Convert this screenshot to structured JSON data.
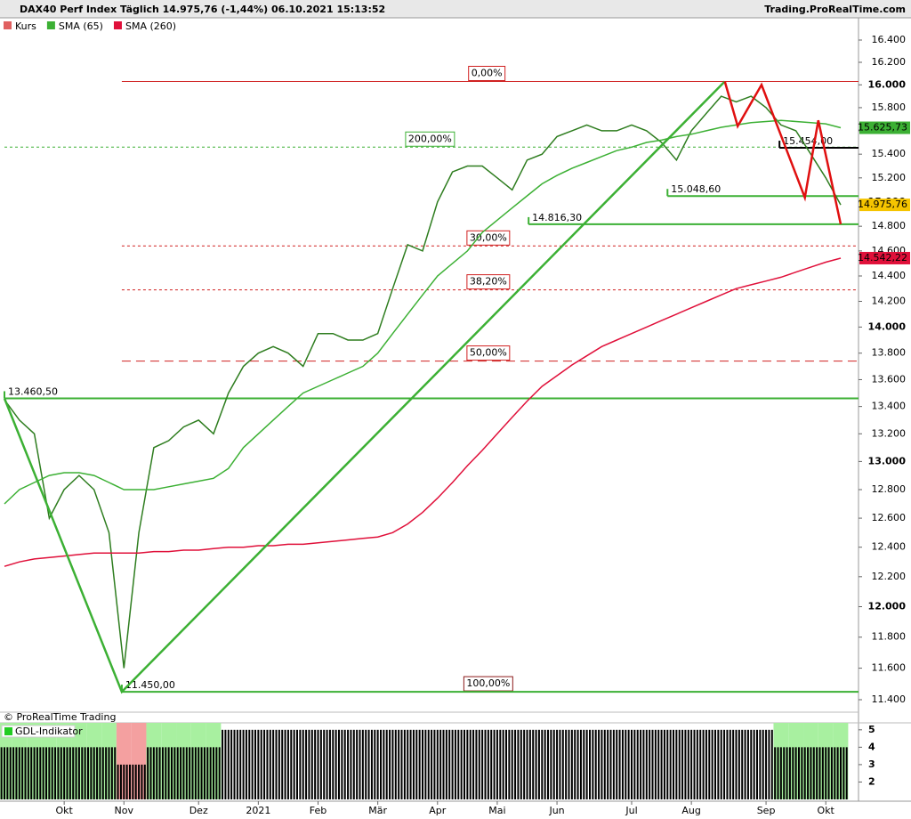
{
  "chart_data": {
    "type": "line",
    "title": "DAX40 Perf Index Täglich 14.975,76 (-1,44%) 06.10.2021 15:13:52",
    "source": "Trading.ProRealTime.com",
    "copyright": "© ProRealTime Trading",
    "log_scale": true,
    "ylim": [
      11322,
      16725
    ],
    "yticks": [
      {
        "value": 11400,
        "label": "11.400"
      },
      {
        "value": 11600,
        "label": "11.600"
      },
      {
        "value": 11800,
        "label": "11.800"
      },
      {
        "value": 12000,
        "label": "12.000"
      },
      {
        "value": 12200,
        "label": "12.200"
      },
      {
        "value": 12400,
        "label": "12.400"
      },
      {
        "value": 12600,
        "label": "12.600"
      },
      {
        "value": 12800,
        "label": "12.800"
      },
      {
        "value": 13000,
        "label": "13.000"
      },
      {
        "value": 13200,
        "label": "13.200"
      },
      {
        "value": 13400,
        "label": "13.400"
      },
      {
        "value": 13600,
        "label": "13.600"
      },
      {
        "value": 13800,
        "label": "13.800"
      },
      {
        "value": 14000,
        "label": "14.000"
      },
      {
        "value": 14200,
        "label": "14.200"
      },
      {
        "value": 14400,
        "label": "14.400"
      },
      {
        "value": 14600,
        "label": "14.600"
      },
      {
        "value": 14800,
        "label": "14.800"
      },
      {
        "value": 15000,
        "label": "15.000"
      },
      {
        "value": 15200,
        "label": "15.200"
      },
      {
        "value": 15400,
        "label": "15.400"
      },
      {
        "value": 15600,
        "label": "15.600"
      },
      {
        "value": 15800,
        "label": "15.800"
      },
      {
        "value": 16000,
        "label": "16.000"
      },
      {
        "value": 16200,
        "label": "16.200"
      },
      {
        "value": 16400,
        "label": "16.400"
      }
    ],
    "categories": [
      null,
      null,
      null,
      null,
      "Okt",
      null,
      null,
      null,
      "Nov",
      null,
      null,
      null,
      null,
      "Dez",
      null,
      null,
      null,
      "2021",
      null,
      null,
      null,
      "Feb",
      null,
      null,
      null,
      "Mär",
      null,
      null,
      null,
      "Apr",
      null,
      null,
      null,
      "Mai",
      null,
      null,
      null,
      "Jun",
      null,
      null,
      null,
      null,
      "Jul",
      null,
      null,
      null,
      "Aug",
      null,
      null,
      null,
      null,
      "Sep",
      null,
      null,
      null,
      "Okt",
      null
    ],
    "series": [
      {
        "name": "Kurs",
        "color": "#2e7d1f",
        "legend_color": "#e06060",
        "last_label": "14.975,76",
        "last_label_color": "#f5c400",
        "values": [
          13450,
          13300,
          13200,
          12600,
          12800,
          12900,
          12800,
          12500,
          11600,
          12500,
          13100,
          13150,
          13250,
          13300,
          13200,
          13500,
          13700,
          13800,
          13850,
          13800,
          13700,
          13950,
          13950,
          13900,
          13900,
          13950,
          14300,
          14650,
          14600,
          15000,
          15250,
          15300,
          15300,
          15200,
          15100,
          15350,
          15400,
          15550,
          15600,
          15650,
          15600,
          15600,
          15650,
          15600,
          15500,
          15350,
          15600,
          15750,
          15900,
          15850,
          15900,
          15800,
          15650,
          15600,
          15400,
          15200,
          14975.76
        ]
      },
      {
        "name": "SMA (65)",
        "color": "#3cb034",
        "last_label": "15.625,73",
        "last_label_color": "#3cb034",
        "values": [
          12700,
          12800,
          12850,
          12900,
          12920,
          12920,
          12900,
          12850,
          12800,
          12800,
          12800,
          12820,
          12840,
          12860,
          12880,
          12950,
          13100,
          13200,
          13300,
          13400,
          13500,
          13550,
          13600,
          13650,
          13700,
          13800,
          13950,
          14100,
          14250,
          14400,
          14500,
          14600,
          14750,
          14850,
          14950,
          15050,
          15150,
          15220,
          15280,
          15330,
          15380,
          15430,
          15460,
          15500,
          15520,
          15550,
          15570,
          15600,
          15630,
          15650,
          15670,
          15680,
          15690,
          15680,
          15670,
          15660,
          15625.73
        ]
      },
      {
        "name": "SMA (260)",
        "color": "#e0103a",
        "last_label": "14.542,22",
        "last_label_color": "#e0103a",
        "values": [
          12270,
          12300,
          12320,
          12330,
          12340,
          12350,
          12360,
          12360,
          12360,
          12360,
          12370,
          12370,
          12380,
          12380,
          12390,
          12400,
          12400,
          12410,
          12410,
          12420,
          12420,
          12430,
          12440,
          12450,
          12460,
          12470,
          12500,
          12560,
          12640,
          12740,
          12850,
          12970,
          13080,
          13200,
          13320,
          13440,
          13550,
          13630,
          13710,
          13780,
          13850,
          13900,
          13950,
          14000,
          14050,
          14100,
          14150,
          14200,
          14250,
          14300,
          14330,
          14360,
          14390,
          14430,
          14470,
          14510,
          14542.22
        ]
      }
    ],
    "levels": [
      {
        "label": "13.460,50",
        "value": 13460.5,
        "color": "#3cb034",
        "start": 0
      },
      {
        "label": "14.816,30",
        "value": 14816.3,
        "color": "#3cb034",
        "start": 35.1
      },
      {
        "label": "15.048,60",
        "value": 15048.6,
        "color": "#3cb034",
        "start": 44.4
      },
      {
        "label": "15.454,00",
        "value": 15454,
        "color": "#000000",
        "start": 51.9
      },
      {
        "label": "11.450,00",
        "value": 11450,
        "color": "#3cb034",
        "start": 7.86
      }
    ],
    "fibonacci": [
      {
        "label": "0,00%",
        "price": 16030,
        "color": "#d02020",
        "dash": "",
        "start": 7.86,
        "label_at": 32.3
      },
      {
        "label": "200,00%",
        "price": 15460,
        "color": "#3cb034",
        "dash": "3 3",
        "start": 0,
        "label_at": 28.5
      },
      {
        "label": "30,00%",
        "price": 14640,
        "color": "#d02020",
        "dash": "3 3",
        "start": 7.86,
        "label_at": 32.4
      },
      {
        "label": "38,20%",
        "price": 14290,
        "color": "#d02020",
        "dash": "3 3",
        "start": 7.86,
        "label_at": 32.4
      },
      {
        "label": "50,00%",
        "price": 13740,
        "color": "#d02020",
        "dash": "10 6",
        "start": 7.86,
        "label_at": 32.4
      },
      {
        "label": "100,00%",
        "price": 11450,
        "color": "#8b1a1a",
        "dash": "",
        "start": 7.86,
        "label_at": 32.4
      }
    ],
    "trendlines": [
      {
        "color": "#3cb034",
        "x": [
          0,
          7.86,
          48.24
        ],
        "values": [
          13460.5,
          11450,
          16030
        ]
      },
      {
        "color": "#e01010",
        "x": [
          48.24,
          49.1,
          50.7,
          53.6,
          54.5,
          56
        ],
        "values": [
          16030,
          15640,
          16000,
          15036,
          15690,
          14816.3
        ]
      }
    ],
    "indicator": {
      "name": "GDL-Indikator",
      "color": "#000000",
      "ylim": [
        1,
        5.4
      ],
      "yticks": [
        2,
        3,
        4,
        5
      ],
      "values": [
        4,
        4,
        4,
        4,
        4,
        4,
        4,
        4,
        3,
        3,
        4,
        4,
        4,
        4,
        4,
        5,
        5,
        5,
        5,
        5,
        5,
        5,
        5,
        5,
        5,
        5,
        5,
        5,
        5,
        5,
        5,
        5,
        5,
        5,
        5,
        5,
        5,
        5,
        5,
        5,
        5,
        5,
        5,
        5,
        5,
        5,
        5,
        5,
        5,
        5,
        5,
        5,
        4,
        4,
        4,
        4,
        4
      ]
    }
  }
}
